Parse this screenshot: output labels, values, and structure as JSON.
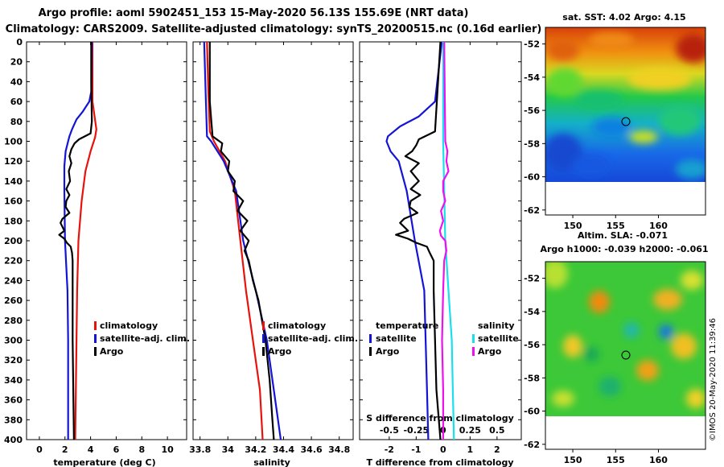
{
  "title": {
    "line1": "Argo profile: aoml 5902451_153 15-May-2020 56.13S 155.69E (NRT data)",
    "line2": "Climatology: CARS2009. Satellite-adjusted climatology: synTS_20200515.nc (0.16d earlier)"
  },
  "colors": {
    "climatology": "#e8120c",
    "satellite": "#1414d6",
    "argo": "#000000",
    "sal_satellite": "#18e0ec",
    "sal_argo": "#ee10ee"
  },
  "depth_ticks": [
    "0",
    "20",
    "40",
    "60",
    "80",
    "100",
    "120",
    "140",
    "160",
    "180",
    "200",
    "220",
    "240",
    "260",
    "280",
    "300",
    "320",
    "340",
    "360",
    "380",
    "400"
  ],
  "chart_data": [
    {
      "type": "line",
      "name": "temperature-profile",
      "xlabel": "temperature (deg C)",
      "ylabel": "depth",
      "xlim": [
        -1,
        11.5
      ],
      "ylim": [
        400,
        0
      ],
      "xticks": [
        "0",
        "2",
        "4",
        "6",
        "8",
        "10"
      ],
      "legend": [
        "climatology",
        "satellite-adj. clim.",
        "Argo"
      ],
      "series": [
        {
          "name": "climatology",
          "depth": [
            0,
            60,
            88,
            96,
            110,
            130,
            160,
            200,
            250,
            300,
            350,
            400
          ],
          "values": [
            4.15,
            4.15,
            4.45,
            4.35,
            4.0,
            3.6,
            3.3,
            3.05,
            2.95,
            2.9,
            2.85,
            2.8
          ]
        },
        {
          "name": "satellite-adj. clim.",
          "depth": [
            0,
            50,
            60,
            70,
            78,
            88,
            95,
            100,
            110,
            125,
            150,
            200,
            250,
            300,
            350,
            400
          ],
          "values": [
            4.1,
            4.05,
            3.9,
            3.4,
            2.9,
            2.55,
            2.35,
            2.25,
            2.05,
            1.95,
            1.95,
            2.0,
            2.2,
            2.25,
            2.25,
            2.25
          ]
        },
        {
          "name": "Argo",
          "depth": [
            0,
            40,
            80,
            92,
            98,
            102,
            108,
            115,
            122,
            130,
            140,
            148,
            154,
            160,
            166,
            172,
            178,
            182,
            186,
            190,
            194,
            198,
            202,
            206,
            212,
            220,
            250,
            300,
            350,
            400
          ],
          "values": [
            4.05,
            4.05,
            4.1,
            4.0,
            3.1,
            2.75,
            2.5,
            2.35,
            2.5,
            2.3,
            2.4,
            2.1,
            2.35,
            2.1,
            2.05,
            2.35,
            1.8,
            1.65,
            1.8,
            1.95,
            1.55,
            1.95,
            2.15,
            2.45,
            2.55,
            2.6,
            2.6,
            2.6,
            2.65,
            2.7
          ]
        }
      ]
    },
    {
      "type": "line",
      "name": "salinity-profile",
      "xlabel": "salinity",
      "ylabel": "depth",
      "xlim": [
        33.75,
        34.9
      ],
      "ylim": [
        400,
        0
      ],
      "xticks": [
        "33.8",
        "34",
        "34.2",
        "34.4",
        "34.6",
        "34.8"
      ],
      "legend": [
        "climatology",
        "satellite-adj. clim.",
        "Argo"
      ],
      "series": [
        {
          "name": "climatology",
          "depth": [
            0,
            50,
            90,
            100,
            120,
            150,
            200,
            250,
            300,
            350,
            400
          ],
          "values": [
            33.85,
            33.86,
            33.87,
            33.9,
            33.98,
            34.05,
            34.09,
            34.13,
            34.18,
            34.23,
            34.25
          ]
        },
        {
          "name": "satellite-adj. clim.",
          "depth": [
            0,
            50,
            95,
            100,
            120,
            150,
            200,
            250,
            300,
            350,
            400
          ],
          "values": [
            33.83,
            33.84,
            33.85,
            33.88,
            33.97,
            34.06,
            34.11,
            34.2,
            34.28,
            34.33,
            34.38
          ]
        },
        {
          "name": "Argo",
          "depth": [
            0,
            60,
            95,
            102,
            110,
            120,
            130,
            140,
            150,
            160,
            170,
            180,
            190,
            200,
            210,
            220,
            240,
            260,
            300,
            340,
            380,
            400
          ],
          "values": [
            33.87,
            33.87,
            33.89,
            33.96,
            33.95,
            34.01,
            34.0,
            34.05,
            34.04,
            34.11,
            34.07,
            34.14,
            34.09,
            34.15,
            34.12,
            34.15,
            34.18,
            34.22,
            34.27,
            34.3,
            34.32,
            34.33
          ]
        }
      ]
    },
    {
      "type": "line",
      "name": "difference-profile",
      "xlabel": "T difference from climatology",
      "top_axis_label": "S difference from climatology",
      "ylim": [
        400,
        0
      ],
      "xlim": [
        -3.1,
        2.9
      ],
      "xticks": [
        "-2",
        "-1",
        "0",
        "1",
        "2"
      ],
      "s_scale": 4,
      "top_ticks": [
        "-0.5",
        "-0.25",
        "0",
        "0.25",
        "0.5"
      ],
      "legend_temperature": {
        "heading": "temperature",
        "items": [
          "satellite",
          "Argo"
        ]
      },
      "legend_salinity": {
        "heading": "salinity",
        "items": [
          "satellite",
          "Argo"
        ]
      },
      "series": [
        {
          "name": "temperature satellite",
          "depth": [
            0,
            60,
            75,
            85,
            95,
            100,
            110,
            120,
            150,
            200,
            250,
            300,
            350,
            400
          ],
          "values": [
            -0.05,
            -0.3,
            -0.9,
            -1.6,
            -2.05,
            -2.1,
            -1.95,
            -1.65,
            -1.35,
            -1.05,
            -0.7,
            -0.65,
            -0.6,
            -0.55
          ]
        },
        {
          "name": "temperature Argo",
          "depth": [
            0,
            90,
            98,
            104,
            110,
            115,
            122,
            130,
            140,
            148,
            154,
            160,
            166,
            172,
            178,
            182,
            186,
            190,
            194,
            198,
            202,
            206,
            212,
            220,
            250,
            300,
            350,
            400
          ],
          "values": [
            -0.1,
            -0.3,
            -0.9,
            -1.0,
            -1.15,
            -1.4,
            -0.9,
            -1.2,
            -0.9,
            -1.2,
            -0.85,
            -1.2,
            -1.25,
            -0.95,
            -1.45,
            -1.6,
            -1.45,
            -1.3,
            -1.75,
            -1.3,
            -1.0,
            -0.6,
            -0.5,
            -0.35,
            -0.35,
            -0.3,
            -0.25,
            -0.1
          ]
        },
        {
          "name": "salinity satellite",
          "depth": [
            0,
            100,
            150,
            200,
            250,
            300,
            350,
            400
          ],
          "values": [
            0.0,
            0.0,
            0.01,
            0.02,
            0.05,
            0.08,
            0.09,
            0.1
          ]
        },
        {
          "name": "salinity Argo",
          "depth": [
            0,
            100,
            110,
            120,
            130,
            140,
            150,
            160,
            170,
            180,
            190,
            195,
            200,
            210,
            220,
            250,
            300,
            350,
            400
          ],
          "values": [
            0.01,
            0.02,
            0.04,
            0.03,
            0.05,
            0.0,
            0.0,
            0.02,
            -0.02,
            0.0,
            -0.03,
            -0.02,
            0.02,
            0.03,
            0.01,
            0.0,
            -0.01,
            0.0,
            0.0
          ]
        }
      ]
    }
  ],
  "maps": [
    {
      "name": "sst-map",
      "title": "sat. SST: 4.02 Argo: 4.15",
      "yticks": [
        "-52",
        "-54",
        "-56",
        "-58",
        "-60",
        "-62"
      ],
      "xticks": [
        "150",
        "155",
        "160"
      ],
      "profile": {
        "lon": 155.69,
        "lat": -56.13
      }
    },
    {
      "name": "sla-map",
      "title_line1": "Altim. SLA: -0.071",
      "title_line2": "Argo h1000: -0.039 h2000: -0.061",
      "yticks": [
        "-52",
        "-54",
        "-56",
        "-58",
        "-60",
        "-62"
      ],
      "xticks": [
        "150",
        "155",
        "160"
      ],
      "profile": {
        "lon": 155.69,
        "lat": -56.13
      }
    }
  ],
  "credit": "©IMOS 20-May-2020 11:39:46"
}
